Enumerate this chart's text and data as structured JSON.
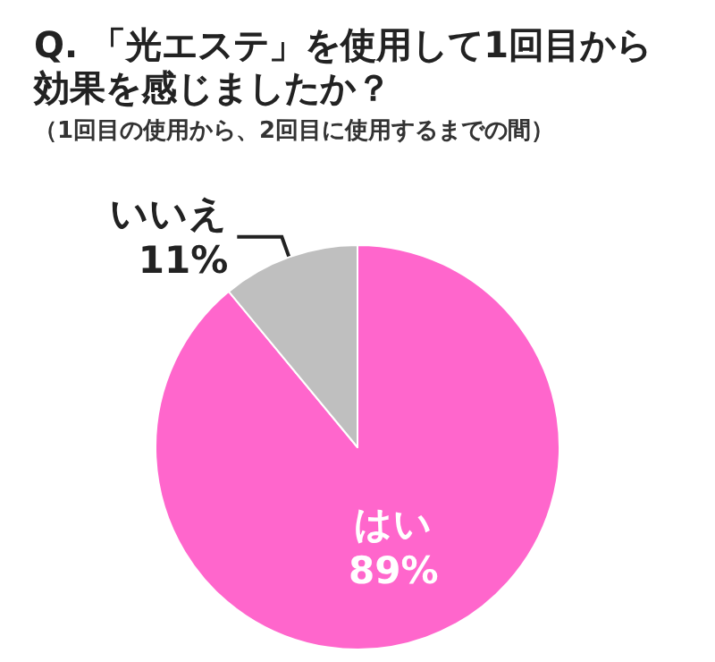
{
  "chart_data": {
    "type": "pie",
    "title": "Q. 「光エステ」を使用して1回目から効果を感じましたか？",
    "subtitle": "（1回目の使用から、2回目に使用するまでの間）",
    "categories": [
      "はい",
      "いいえ"
    ],
    "values": [
      89,
      11
    ],
    "colors": [
      "#ff66cc",
      "#bfbfbf"
    ],
    "value_labels": [
      "89%",
      "11%"
    ],
    "legend": false
  }
}
